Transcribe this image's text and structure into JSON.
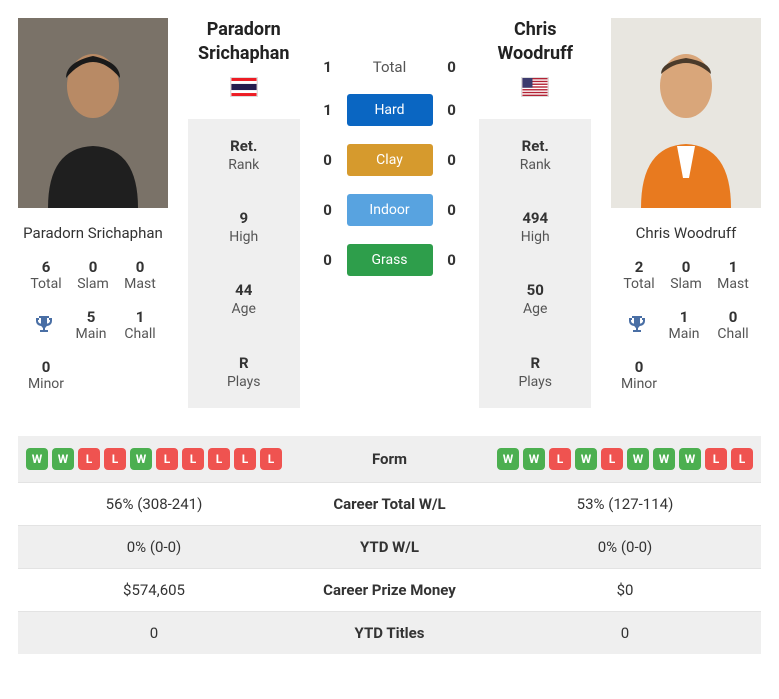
{
  "player1": {
    "name_line1": "Paradorn",
    "name_line2": "Srichaphan",
    "full_name": "Paradorn Srichaphan",
    "flag": "th",
    "photo_bg": "#f0f0f0",
    "rank_label": "Rank",
    "rank_value": "Ret.",
    "high_label": "High",
    "high_value": "9",
    "age_label": "Age",
    "age_value": "44",
    "plays_label": "Plays",
    "plays_value": "R",
    "titles": {
      "total_v": "6",
      "total_l": "Total",
      "slam_v": "0",
      "slam_l": "Slam",
      "mast_v": "0",
      "mast_l": "Mast",
      "main_v": "5",
      "main_l": "Main",
      "chall_v": "1",
      "chall_l": "Chall",
      "minor_v": "0",
      "minor_l": "Minor"
    },
    "form": [
      "W",
      "W",
      "L",
      "L",
      "W",
      "L",
      "L",
      "L",
      "L",
      "L"
    ],
    "career_wl": "56% (308-241)",
    "ytd_wl": "0% (0-0)",
    "prize": "$574,605",
    "ytd_titles": "0"
  },
  "player2": {
    "name_line1": "Chris",
    "name_line2": "Woodruff",
    "full_name": "Chris Woodruff",
    "flag": "us",
    "photo_bg": "#f0f0f0",
    "rank_label": "Rank",
    "rank_value": "Ret.",
    "high_label": "High",
    "high_value": "494",
    "age_label": "Age",
    "age_value": "50",
    "plays_label": "Plays",
    "plays_value": "R",
    "titles": {
      "total_v": "2",
      "total_l": "Total",
      "slam_v": "0",
      "slam_l": "Slam",
      "mast_v": "1",
      "mast_l": "Mast",
      "main_v": "1",
      "main_l": "Main",
      "chall_v": "0",
      "chall_l": "Chall",
      "minor_v": "0",
      "minor_l": "Minor"
    },
    "form": [
      "W",
      "W",
      "L",
      "W",
      "L",
      "W",
      "W",
      "W",
      "L",
      "L"
    ],
    "career_wl": "53% (127-114)",
    "ytd_wl": "0% (0-0)",
    "prize": "$0",
    "ytd_titles": "0"
  },
  "h2h": {
    "total_label": "Total",
    "total_p1": "1",
    "total_p2": "0",
    "hard_label": "Hard",
    "hard_p1": "1",
    "hard_p2": "0",
    "clay_label": "Clay",
    "clay_p1": "0",
    "clay_p2": "0",
    "indoor_label": "Indoor",
    "indoor_p1": "0",
    "indoor_p2": "0",
    "grass_label": "Grass",
    "grass_p1": "0",
    "grass_p2": "0"
  },
  "table_labels": {
    "form": "Form",
    "career_wl": "Career Total W/L",
    "ytd_wl": "YTD W/L",
    "prize": "Career Prize Money",
    "ytd_titles": "YTD Titles"
  },
  "colors": {
    "hard": "#0a66c2",
    "clay": "#d69a2d",
    "indoor": "#58a3e0",
    "grass": "#2e9e4b",
    "chip_w": "#4caf50",
    "chip_l": "#ef5350",
    "gray_bg": "#efefef"
  }
}
